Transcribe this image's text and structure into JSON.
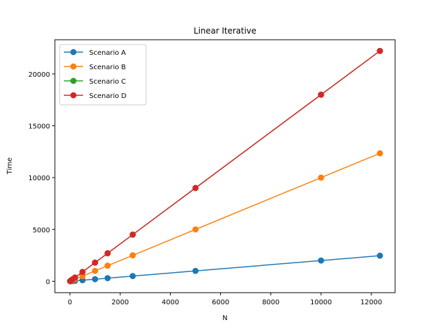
{
  "chart_data": {
    "type": "line",
    "title": "Linear Iterative",
    "xlabel": "N",
    "ylabel": "Time",
    "xlim": [
      -600,
      12950
    ],
    "ylim": [
      -1100,
      23300
    ],
    "xticks": [
      0,
      2000,
      4000,
      6000,
      8000,
      10000,
      12000
    ],
    "yticks": [
      0,
      5000,
      10000,
      15000,
      20000
    ],
    "legend_position": "upper-left",
    "marker": "circle",
    "x": [
      10,
      50,
      100,
      200,
      500,
      1000,
      1500,
      2500,
      5000,
      10000,
      12345
    ],
    "series": [
      {
        "name": "Scenario A",
        "color": "#1f77b4",
        "values": [
          2,
          10,
          20,
          40,
          100,
          200,
          300,
          500,
          1000,
          2000,
          2469
        ]
      },
      {
        "name": "Scenario B",
        "color": "#ff7f0e",
        "values": [
          10,
          50,
          100,
          200,
          500,
          1000,
          1500,
          2500,
          5000,
          10000,
          12345
        ]
      },
      {
        "name": "Scenario C",
        "color": "#2ca02c",
        "values": [
          18,
          90,
          180,
          360,
          900,
          1800,
          2700,
          4500,
          9000,
          18000,
          22221
        ]
      },
      {
        "name": "Scenario D",
        "color": "#d62728",
        "values": [
          18,
          90,
          180,
          360,
          900,
          1800,
          2700,
          4500,
          9000,
          18000,
          22221
        ]
      }
    ]
  }
}
